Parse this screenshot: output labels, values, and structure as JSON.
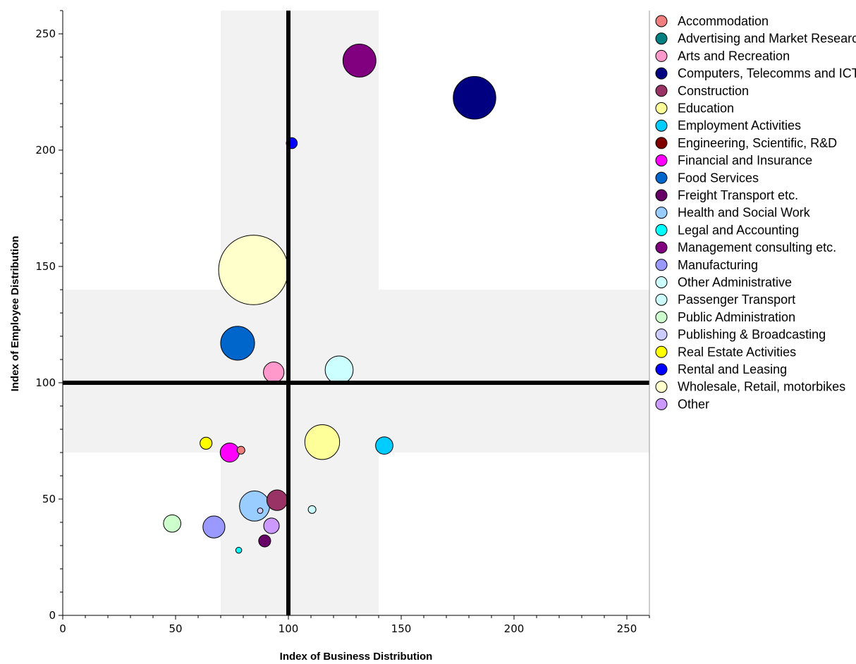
{
  "chart_data": {
    "type": "scatter",
    "variant": "bubble",
    "xlabel": "Index of Business Distribution",
    "ylabel": "Index of Employee Distribution",
    "xlim": [
      0,
      260
    ],
    "ylim": [
      0,
      260
    ],
    "xticks": [
      0,
      50,
      100,
      150,
      200,
      250
    ],
    "yticks": [
      0,
      50,
      100,
      150,
      200,
      250
    ],
    "grid": false,
    "legend_position": "right",
    "reference_lines": {
      "x": 100,
      "y": 100
    },
    "shaded_bands": {
      "x": [
        70,
        140
      ],
      "y": [
        70,
        140
      ],
      "color": "#f2f2f2"
    },
    "series": [
      {
        "name": "Accommodation",
        "color": "#f08080",
        "x": 79,
        "y": 71,
        "size": 0.5
      },
      {
        "name": "Advertising and Market Research",
        "color": "#008080",
        "x": null,
        "y": null,
        "size": null
      },
      {
        "name": "Arts and Recreation",
        "color": "#ff99cc",
        "x": 93.5,
        "y": 104.5,
        "size": 3.5
      },
      {
        "name": "Computers, Telecomms and ICT",
        "color": "#000080",
        "x": 182.5,
        "y": 222.5,
        "size": 15
      },
      {
        "name": "Construction",
        "color": "#993366",
        "x": 95,
        "y": 49.5,
        "size": 3.5
      },
      {
        "name": "Education",
        "color": "#ffff99",
        "x": 115,
        "y": 74.5,
        "size": 10
      },
      {
        "name": "Employment Activities",
        "color": "#00ccff",
        "x": 142.5,
        "y": 73,
        "size": 2.5
      },
      {
        "name": "Engineering, Scientific, R&D",
        "color": "#800000",
        "x": null,
        "y": null,
        "size": null
      },
      {
        "name": "Financial and Insurance",
        "color": "#ff00ff",
        "x": 74,
        "y": 70,
        "size": 3
      },
      {
        "name": "Food Services",
        "color": "#0066cc",
        "x": 77.5,
        "y": 117,
        "size": 9.5
      },
      {
        "name": "Freight Transport etc.",
        "color": "#660066",
        "x": 89.5,
        "y": 32,
        "size": 1.2
      },
      {
        "name": "Health and Social Work",
        "color": "#99ccff",
        "x": 85,
        "y": 47,
        "size": 7.5
      },
      {
        "name": "Legal and Accounting",
        "color": "#00ffff",
        "x": 78,
        "y": 28,
        "size": 0.3
      },
      {
        "name": "Management consulting etc.",
        "color": "#800080",
        "x": 131.5,
        "y": 238.5,
        "size": 9
      },
      {
        "name": "Manufacturing",
        "color": "#9999ff",
        "x": 67,
        "y": 38,
        "size": 4
      },
      {
        "name": "Other Administrative",
        "color": "#ccffff",
        "x": 122.5,
        "y": 105.5,
        "size": 6.5
      },
      {
        "name": "Passenger Transport",
        "color": "#ccffff",
        "x": 110.5,
        "y": 45.5,
        "size": 0.5
      },
      {
        "name": "Public Administration",
        "color": "#ccffcc",
        "x": 48.5,
        "y": 39.5,
        "size": 2.5
      },
      {
        "name": "Publishing & Broadcasting",
        "color": "#ccccff",
        "x": 87.5,
        "y": 45,
        "size": 0.25
      },
      {
        "name": "Real Estate Activities",
        "color": "#ffff00",
        "x": 63.5,
        "y": 74,
        "size": 1.2
      },
      {
        "name": "Rental and Leasing",
        "color": "#0000ff",
        "x": 101.5,
        "y": 203,
        "size": 1
      },
      {
        "name": "Wholesale, Retail, motorbikes",
        "color": "#ffffcc",
        "x": 84.5,
        "y": 148.5,
        "size": 40
      },
      {
        "name": "Other",
        "color": "#cc99ff",
        "x": 92.5,
        "y": 38.5,
        "size": 2
      }
    ]
  }
}
